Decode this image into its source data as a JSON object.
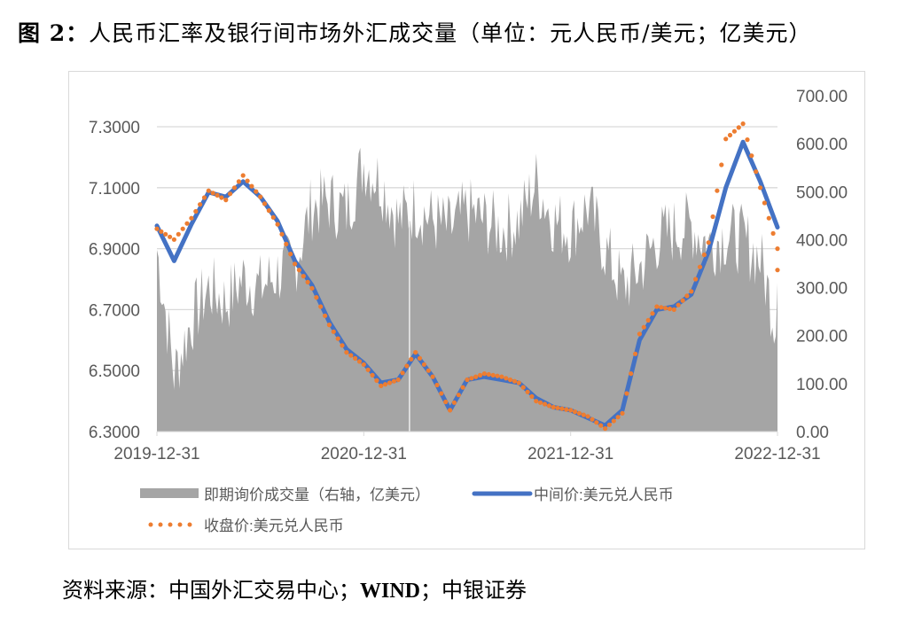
{
  "figure": {
    "label": "图 2：",
    "title": "人民币汇率及银行间市场外汇成交量（单位：元人民币/美元；亿美元）"
  },
  "source": {
    "prefix": "资料来源：中国外汇交易中心；",
    "wind": "WIND",
    "suffix": "；中银证券"
  },
  "colors": {
    "volume_area": "#a5a5a5",
    "mid_price_line": "#4472c4",
    "close_price_dots": "#ed7d31",
    "gridline": "#d9d9d9",
    "axis_text": "#595959"
  },
  "chart_data": {
    "type": "line",
    "title": "人民币汇率及银行间市场外汇成交量（单位：元人民币/美元；亿美元）",
    "xlabel": "",
    "ylabel": "元人民币/美元",
    "y2label": "亿美元",
    "x_tick_labels": [
      "2019-12-31",
      "2020-12-31",
      "2021-12-31",
      "2022-12-31"
    ],
    "y_left": {
      "ticks": [
        "6.3000",
        "6.5000",
        "6.7000",
        "6.9000",
        "7.1000",
        "7.3000"
      ],
      "ylim": [
        6.3,
        7.3
      ]
    },
    "y_right": {
      "ticks": [
        "0.00",
        "100.00",
        "200.00",
        "300.00",
        "400.00",
        "500.00",
        "600.00",
        "700.00"
      ],
      "ylim": [
        0,
        700
      ]
    },
    "grid": true,
    "legend_position": "bottom",
    "legend": [
      {
        "label": "即期询价成交量（右轴，亿美元）",
        "style": "area"
      },
      {
        "label": "中间价:美元兑人民币",
        "style": "line"
      },
      {
        "label": "收盘价:美元兑人民币",
        "style": "dots"
      }
    ],
    "x": [
      "2019-12-31",
      "2020-01-31",
      "2020-02-28",
      "2020-03-31",
      "2020-04-30",
      "2020-05-29",
      "2020-06-30",
      "2020-07-31",
      "2020-08-31",
      "2020-09-30",
      "2020-10-30",
      "2020-11-30",
      "2020-12-31",
      "2021-01-29",
      "2021-02-26",
      "2021-03-31",
      "2021-04-30",
      "2021-05-31",
      "2021-06-30",
      "2021-07-30",
      "2021-08-31",
      "2021-09-30",
      "2021-10-29",
      "2021-11-30",
      "2021-12-31",
      "2022-01-28",
      "2022-02-28",
      "2022-03-31",
      "2022-04-29",
      "2022-05-31",
      "2022-06-30",
      "2022-07-29",
      "2022-08-31",
      "2022-09-30",
      "2022-10-31",
      "2022-11-30",
      "2022-12-30"
    ],
    "series": [
      {
        "name": "中间价:美元兑人民币",
        "axis": "left",
        "values": [
          6.975,
          6.86,
          6.98,
          7.085,
          7.07,
          7.12,
          7.07,
          6.99,
          6.86,
          6.78,
          6.66,
          6.57,
          6.525,
          6.46,
          6.47,
          6.555,
          6.48,
          6.37,
          6.47,
          6.48,
          6.47,
          6.46,
          6.41,
          6.38,
          6.37,
          6.345,
          6.32,
          6.37,
          6.6,
          6.7,
          6.71,
          6.75,
          6.89,
          7.1,
          7.25,
          7.12,
          6.97
        ]
      },
      {
        "name": "收盘价:美元兑人民币",
        "axis": "left",
        "values": [
          6.965,
          6.93,
          7.0,
          7.09,
          7.06,
          7.14,
          7.07,
          6.98,
          6.85,
          6.77,
          6.65,
          6.56,
          6.52,
          6.45,
          6.47,
          6.56,
          6.48,
          6.37,
          6.47,
          6.49,
          6.48,
          6.46,
          6.4,
          6.38,
          6.37,
          6.35,
          6.31,
          6.36,
          6.62,
          6.71,
          6.7,
          6.76,
          6.92,
          7.26,
          7.31,
          7.1,
          6.9
        ]
      },
      {
        "name": "即期询价成交量（右轴，亿美元）",
        "axis": "right",
        "values": [
          380,
          120,
          230,
          300,
          270,
          320,
          300,
          330,
          350,
          470,
          480,
          460,
          560,
          520,
          440,
          470,
          440,
          420,
          460,
          440,
          420,
          440,
          520,
          440,
          420,
          470,
          380,
          300,
          340,
          400,
          420,
          430,
          390,
          410,
          400,
          360,
          210
        ]
      }
    ]
  }
}
